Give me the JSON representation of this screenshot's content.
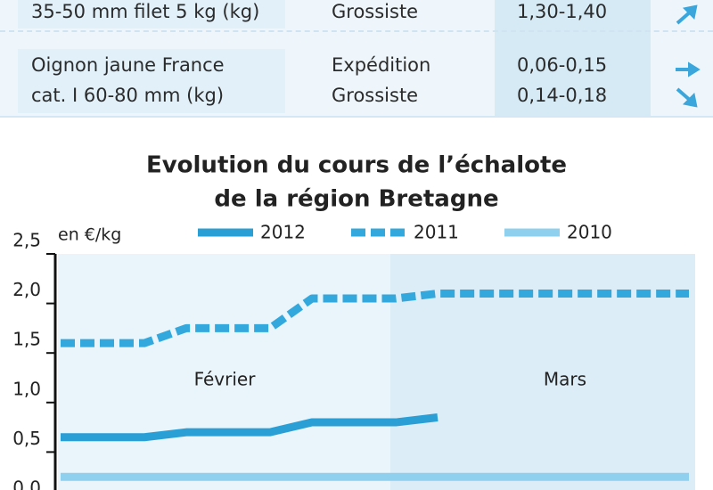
{
  "table": {
    "rows": [
      {
        "product": [
          "35-50 mm filet 5 kg (kg)"
        ],
        "market": [
          "Grossiste"
        ],
        "price": [
          "1,30-1,40"
        ]
      },
      {
        "product": [
          "Oignon jaune France",
          "cat. I 60-80 mm (kg)"
        ],
        "market": [
          "Expédition",
          "Grossiste"
        ],
        "price": [
          "0,06-0,15",
          "0,14-0,18"
        ]
      }
    ]
  },
  "chart_data": {
    "type": "line",
    "title": [
      "Evolution du cours de l’échalote",
      "de la région Bretagne"
    ],
    "y_label": "en €/kg",
    "annotations": [
      "Février",
      "Mars"
    ],
    "categories": [
      null,
      null,
      null,
      null,
      null,
      null,
      null,
      null,
      null,
      null,
      null,
      null,
      null,
      null,
      null,
      null
    ],
    "series": [
      {
        "name": "2012",
        "color": "#2a9fd6",
        "style": "solid",
        "values": [
          0.65,
          0.65,
          0.65,
          0.7,
          0.7,
          0.7,
          0.8,
          0.8,
          0.8,
          0.85,
          null,
          null,
          null,
          null,
          null,
          null
        ]
      },
      {
        "name": "2011",
        "color": "#33a8dd",
        "style": "dashed",
        "values": [
          1.6,
          1.6,
          1.6,
          1.75,
          1.75,
          1.75,
          2.05,
          2.05,
          2.05,
          2.1,
          2.1,
          2.1,
          2.1,
          2.1,
          2.1,
          2.1
        ]
      },
      {
        "name": "2010",
        "color": "#8fd0ee",
        "style": "solid",
        "values": [
          0.25,
          0.25,
          0.25,
          0.25,
          0.25,
          0.25,
          0.25,
          0.25,
          0.25,
          0.25,
          0.25,
          0.25,
          0.25,
          0.25,
          0.25,
          0.25
        ]
      }
    ],
    "ylim": [
      0,
      2.5
    ],
    "yticks": [
      {
        "value": 0,
        "label": "0,0"
      },
      {
        "value": 0.5,
        "label": "0,5"
      },
      {
        "value": 1,
        "label": "1,0"
      },
      {
        "value": 1.5,
        "label": "1,5"
      },
      {
        "value": 2,
        "label": "2,0"
      },
      {
        "value": 2.5,
        "label": "2,5"
      }
    ]
  }
}
